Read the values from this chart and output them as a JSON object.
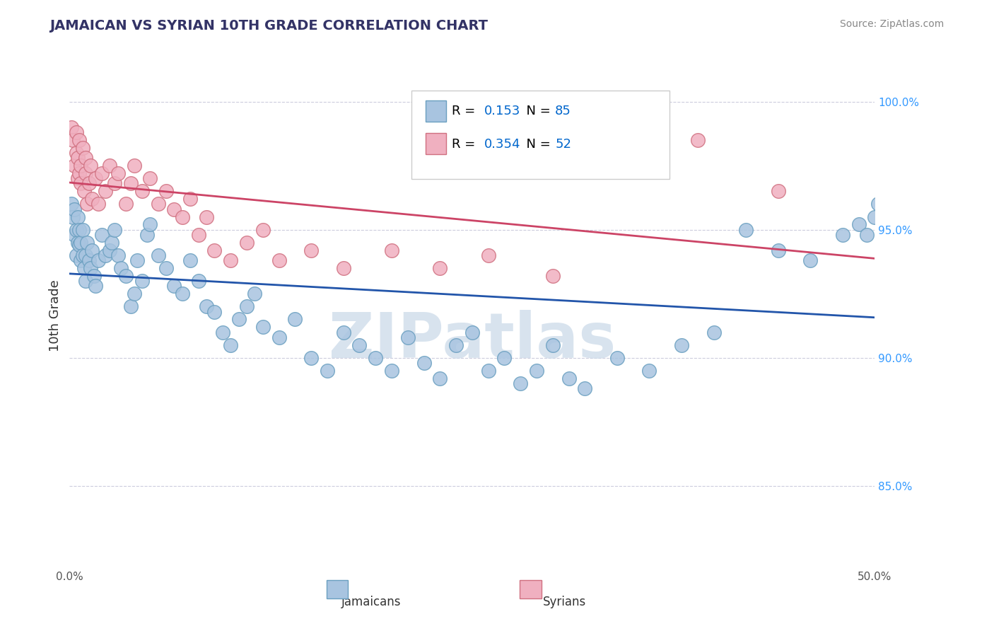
{
  "title": "JAMAICAN VS SYRIAN 10TH GRADE CORRELATION CHART",
  "source": "Source: ZipAtlas.com",
  "ylabel": "10th Grade",
  "y_tick_labels": [
    "85.0%",
    "90.0%",
    "95.0%",
    "100.0%"
  ],
  "y_tick_values": [
    0.85,
    0.9,
    0.95,
    1.0
  ],
  "x_range": [
    0.0,
    0.5
  ],
  "y_range": [
    0.818,
    1.015
  ],
  "jamaican_R": 0.153,
  "jamaican_N": 85,
  "syrian_R": 0.354,
  "syrian_N": 52,
  "jamaican_color": "#a8c4e0",
  "jamaican_edge": "#6a9fc0",
  "jamaican_line_color": "#2255aa",
  "syrian_color": "#f0b0c0",
  "syrian_edge": "#d07080",
  "syrian_line_color": "#cc4466",
  "background_color": "#ffffff",
  "title_color": "#333366",
  "watermark_color": "#c8d8e8",
  "legend_val_color": "#0066cc",
  "grid_color": "#ccccdd",
  "jamaican_x": [
    0.001,
    0.002,
    0.003,
    0.003,
    0.004,
    0.004,
    0.005,
    0.005,
    0.006,
    0.006,
    0.007,
    0.007,
    0.008,
    0.008,
    0.009,
    0.01,
    0.01,
    0.011,
    0.012,
    0.013,
    0.014,
    0.015,
    0.016,
    0.018,
    0.02,
    0.022,
    0.025,
    0.026,
    0.028,
    0.03,
    0.032,
    0.035,
    0.038,
    0.04,
    0.042,
    0.045,
    0.048,
    0.05,
    0.055,
    0.06,
    0.065,
    0.07,
    0.075,
    0.08,
    0.085,
    0.09,
    0.095,
    0.1,
    0.105,
    0.11,
    0.115,
    0.12,
    0.13,
    0.14,
    0.15,
    0.16,
    0.17,
    0.18,
    0.19,
    0.2,
    0.21,
    0.22,
    0.23,
    0.24,
    0.25,
    0.26,
    0.27,
    0.28,
    0.29,
    0.3,
    0.31,
    0.32,
    0.34,
    0.36,
    0.38,
    0.4,
    0.42,
    0.44,
    0.46,
    0.48,
    0.49,
    0.495,
    0.5,
    0.502,
    0.505
  ],
  "jamaican_y": [
    0.96,
    0.955,
    0.958,
    0.948,
    0.94,
    0.95,
    0.945,
    0.955,
    0.95,
    0.944,
    0.938,
    0.945,
    0.94,
    0.95,
    0.935,
    0.93,
    0.94,
    0.945,
    0.938,
    0.935,
    0.942,
    0.932,
    0.928,
    0.938,
    0.948,
    0.94,
    0.942,
    0.945,
    0.95,
    0.94,
    0.935,
    0.932,
    0.92,
    0.925,
    0.938,
    0.93,
    0.948,
    0.952,
    0.94,
    0.935,
    0.928,
    0.925,
    0.938,
    0.93,
    0.92,
    0.918,
    0.91,
    0.905,
    0.915,
    0.92,
    0.925,
    0.912,
    0.908,
    0.915,
    0.9,
    0.895,
    0.91,
    0.905,
    0.9,
    0.895,
    0.908,
    0.898,
    0.892,
    0.905,
    0.91,
    0.895,
    0.9,
    0.89,
    0.895,
    0.905,
    0.892,
    0.888,
    0.9,
    0.895,
    0.905,
    0.91,
    0.95,
    0.942,
    0.938,
    0.948,
    0.952,
    0.948,
    0.955,
    0.96,
    0.958
  ],
  "syrian_x": [
    0.001,
    0.002,
    0.003,
    0.004,
    0.004,
    0.005,
    0.005,
    0.006,
    0.006,
    0.007,
    0.007,
    0.008,
    0.009,
    0.01,
    0.01,
    0.011,
    0.012,
    0.013,
    0.014,
    0.016,
    0.018,
    0.02,
    0.022,
    0.025,
    0.028,
    0.03,
    0.035,
    0.038,
    0.04,
    0.045,
    0.05,
    0.055,
    0.06,
    0.065,
    0.07,
    0.075,
    0.08,
    0.085,
    0.09,
    0.1,
    0.11,
    0.12,
    0.13,
    0.15,
    0.17,
    0.2,
    0.23,
    0.26,
    0.3,
    0.34,
    0.39,
    0.44
  ],
  "syrian_y": [
    0.99,
    0.985,
    0.975,
    0.98,
    0.988,
    0.97,
    0.978,
    0.985,
    0.972,
    0.968,
    0.975,
    0.982,
    0.965,
    0.972,
    0.978,
    0.96,
    0.968,
    0.975,
    0.962,
    0.97,
    0.96,
    0.972,
    0.965,
    0.975,
    0.968,
    0.972,
    0.96,
    0.968,
    0.975,
    0.965,
    0.97,
    0.96,
    0.965,
    0.958,
    0.955,
    0.962,
    0.948,
    0.955,
    0.942,
    0.938,
    0.945,
    0.95,
    0.938,
    0.942,
    0.935,
    0.942,
    0.935,
    0.94,
    0.932,
    0.978,
    0.985,
    0.965
  ]
}
